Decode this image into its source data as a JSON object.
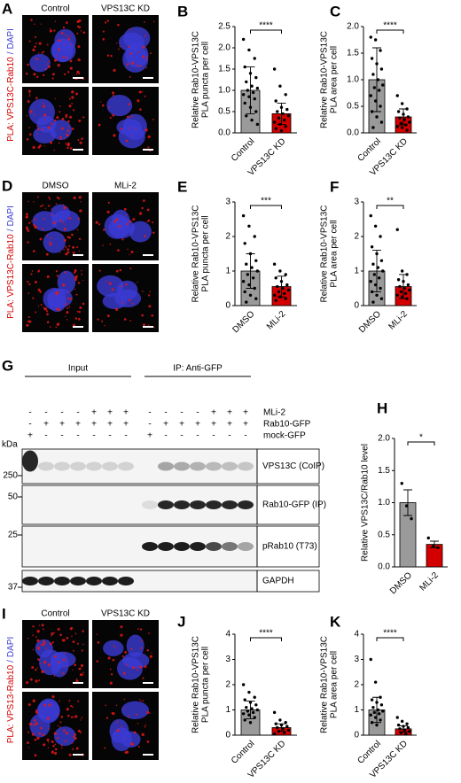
{
  "images": [
    {
      "panel": "A",
      "columns": [
        "Control",
        "VPS13C KD"
      ],
      "side_label": {
        "pla": "PLA: VPS13C-Rab10",
        "sep": "/",
        "dapi": "DAPI"
      }
    },
    {
      "panel": "D",
      "columns": [
        "DMSO",
        "MLi-2"
      ],
      "side_label": {
        "pla": "PLA: VPS13C-Rab10",
        "sep": "/",
        "dapi": "DAPI"
      }
    },
    {
      "panel": "I",
      "columns": [
        "Control",
        "VPS13C KD"
      ],
      "side_label": {
        "pla": "PLA: VPS13-Rab10",
        "sep": "/",
        "dapi": "DAPI"
      }
    }
  ],
  "blot": {
    "panel": "G",
    "input": "Input",
    "ip": "IP: Anti-GFP",
    "treatments": [
      {
        "name": "MLi-2",
        "signs": [
          "-",
          "-",
          "-",
          "-",
          "+",
          "+",
          "+",
          "-",
          "-",
          "-",
          "-",
          "+",
          "+",
          "+"
        ]
      },
      {
        "name": "Rab10-GFP",
        "signs": [
          "-",
          "+",
          "+",
          "+",
          "+",
          "+",
          "+",
          "-",
          "+",
          "+",
          "+",
          "+",
          "+",
          "+"
        ]
      },
      {
        "name": "mock-GFP",
        "signs": [
          "+",
          "-",
          "-",
          "-",
          "-",
          "-",
          "-",
          "+",
          "-",
          "-",
          "-",
          "-",
          "-",
          "-"
        ]
      }
    ],
    "kda": "kDa",
    "markers": [
      250,
      50,
      25,
      37
    ],
    "bands": [
      "VPS13C (CoIP)",
      "Rab10-GFP (IP)",
      "pRab10 (T73)",
      "GAPDH"
    ]
  },
  "chart_data": [
    {
      "type": "bar",
      "panel": "B",
      "ylabel": [
        "Relative Rab10-VPS13C",
        "PLA puncta per cell"
      ],
      "categories": [
        "Control",
        "VPS13C KD"
      ],
      "colors": [
        "#9a9a9a",
        "#d40000"
      ],
      "values": [
        1.0,
        0.45
      ],
      "errors": [
        0.55,
        0.25
      ],
      "points": [
        [
          2.2,
          1.95,
          1.75,
          1.55,
          1.4,
          1.3,
          1.2,
          1.1,
          1.05,
          1.0,
          0.95,
          0.9,
          0.85,
          0.8,
          0.7,
          0.6,
          0.5,
          0.4,
          0.3,
          0.2
        ],
        [
          1.5,
          1.1,
          0.9,
          0.75,
          0.6,
          0.55,
          0.5,
          0.45,
          0.4,
          0.35,
          0.3,
          0.25,
          0.2,
          0.15,
          0.1,
          0.05
        ]
      ],
      "significance": "****",
      "ylim": [
        0,
        2.5
      ],
      "yticks": [
        {
          "value": 0,
          "label": "0.0"
        },
        0.5,
        {
          "value": 1,
          "label": "1.0"
        },
        1.5,
        {
          "value": 2,
          "label": "2.0"
        },
        2.5
      ]
    },
    {
      "type": "bar",
      "panel": "C",
      "ylabel": [
        "Relative Rab10-VPS13C",
        "PLA area per cell"
      ],
      "categories": [
        "Control",
        "VPS13C KD"
      ],
      "colors": [
        "#9a9a9a",
        "#d40000"
      ],
      "values": [
        1.0,
        0.3
      ],
      "errors": [
        0.6,
        0.15
      ],
      "points": [
        [
          1.8,
          1.75,
          1.55,
          1.4,
          1.3,
          1.2,
          1.1,
          1.0,
          0.9,
          0.85,
          0.8,
          0.7,
          0.6,
          0.5,
          0.4,
          0.3,
          0.2,
          0.1
        ],
        [
          0.7,
          0.55,
          0.45,
          0.4,
          0.35,
          0.3,
          0.28,
          0.25,
          0.2,
          0.18,
          0.15,
          0.12,
          0.1,
          0.05
        ]
      ],
      "significance": "****",
      "ylim": [
        0,
        2
      ],
      "yticks": [
        {
          "value": 0,
          "label": "0.0"
        },
        0.5,
        {
          "value": 1,
          "label": "1.0"
        },
        1.5,
        {
          "value": 2,
          "label": "2.0"
        }
      ]
    },
    {
      "type": "bar",
      "panel": "E",
      "ylabel": [
        "Relative Rab10-VPS13C",
        "PLA puncta per cell"
      ],
      "categories": [
        "DMSO",
        "MLi-2"
      ],
      "colors": [
        "#9a9a9a",
        "#d40000"
      ],
      "values": [
        1.0,
        0.55
      ],
      "errors": [
        0.5,
        0.3
      ],
      "points": [
        [
          2.6,
          2.3,
          2.0,
          1.8,
          1.5,
          1.3,
          1.2,
          1.1,
          1.0,
          0.9,
          0.8,
          0.7,
          0.6,
          0.5,
          0.4,
          0.3,
          0.2,
          0.1
        ],
        [
          1.2,
          1.0,
          0.9,
          0.8,
          0.7,
          0.6,
          0.55,
          0.5,
          0.45,
          0.4,
          0.35,
          0.3,
          0.25,
          0.2,
          0.15
        ]
      ],
      "significance": "***",
      "ylim": [
        0,
        3
      ],
      "yticks": [
        0,
        1,
        2,
        3
      ]
    },
    {
      "type": "bar",
      "panel": "F",
      "ylabel": [
        "Relative Rab10-VPS13C",
        "PLA area per cell"
      ],
      "categories": [
        "DMSO",
        "MLi-2"
      ],
      "colors": [
        "#9a9a9a",
        "#d40000"
      ],
      "values": [
        1.0,
        0.55
      ],
      "errors": [
        0.6,
        0.35
      ],
      "points": [
        [
          2.6,
          2.3,
          2.0,
          1.7,
          1.5,
          1.3,
          1.2,
          1.1,
          1.0,
          0.9,
          0.8,
          0.7,
          0.6,
          0.5,
          0.4,
          0.3,
          0.2,
          0.1
        ],
        [
          2.2,
          1.0,
          0.9,
          0.75,
          0.7,
          0.6,
          0.55,
          0.5,
          0.45,
          0.4,
          0.35,
          0.3,
          0.25,
          0.2
        ]
      ],
      "significance": "**",
      "ylim": [
        0,
        3
      ],
      "yticks": [
        0,
        1,
        2,
        3
      ]
    },
    {
      "type": "bar",
      "panel": "H",
      "ylabel": [
        "Relative VPS13C/Rab10 level"
      ],
      "categories": [
        "DMSO",
        "MLi-2"
      ],
      "colors": [
        "#9a9a9a",
        "#d40000"
      ],
      "values": [
        1.0,
        0.35
      ],
      "errors": [
        0.2,
        0.05
      ],
      "points": [
        [
          1.3,
          0.95,
          0.75
        ],
        [
          0.45,
          0.33,
          0.3
        ]
      ],
      "significance": "*",
      "ylim": [
        0,
        2
      ],
      "yticks": [
        {
          "value": 0,
          "label": "0.0"
        },
        0.5,
        {
          "value": 1,
          "label": "1.0"
        },
        1.5,
        {
          "value": 2,
          "label": "2.0"
        }
      ]
    },
    {
      "type": "bar",
      "panel": "J",
      "ylabel": [
        "Relative Rab10-VPS13C",
        "PLA puncta per cell"
      ],
      "categories": [
        "Control",
        "VPS13C KD"
      ],
      "colors": [
        "#9a9a9a",
        "#d40000"
      ],
      "values": [
        1.0,
        0.3
      ],
      "errors": [
        0.35,
        0.15
      ],
      "points": [
        [
          2.0,
          1.7,
          1.5,
          1.4,
          1.3,
          1.2,
          1.1,
          1.05,
          1.0,
          0.95,
          0.9,
          0.85,
          0.8,
          0.7,
          0.6,
          0.5
        ],
        [
          0.9,
          0.6,
          0.5,
          0.45,
          0.4,
          0.35,
          0.3,
          0.25,
          0.2,
          0.15,
          0.1,
          0.05
        ]
      ],
      "significance": "****",
      "ylim": [
        0,
        4
      ],
      "yticks": [
        0,
        1,
        2,
        3,
        4
      ]
    },
    {
      "type": "bar",
      "panel": "K",
      "ylabel": [
        "Relative Rab10-VPS13C",
        "PLA area per cell"
      ],
      "categories": [
        "Control",
        "VPS13C KD"
      ],
      "colors": [
        "#9a9a9a",
        "#d40000"
      ],
      "values": [
        1.0,
        0.25
      ],
      "errors": [
        0.5,
        0.12
      ],
      "points": [
        [
          3.0,
          2.1,
          1.5,
          1.4,
          1.3,
          1.2,
          1.1,
          1.0,
          0.95,
          0.9,
          0.85,
          0.8,
          0.7,
          0.6,
          0.5,
          0.4
        ],
        [
          0.7,
          0.55,
          0.45,
          0.4,
          0.35,
          0.3,
          0.25,
          0.2,
          0.15,
          0.1,
          0.05
        ]
      ],
      "significance": "****",
      "ylim": [
        0,
        4
      ],
      "yticks": [
        0,
        1,
        2,
        3,
        4
      ]
    }
  ]
}
